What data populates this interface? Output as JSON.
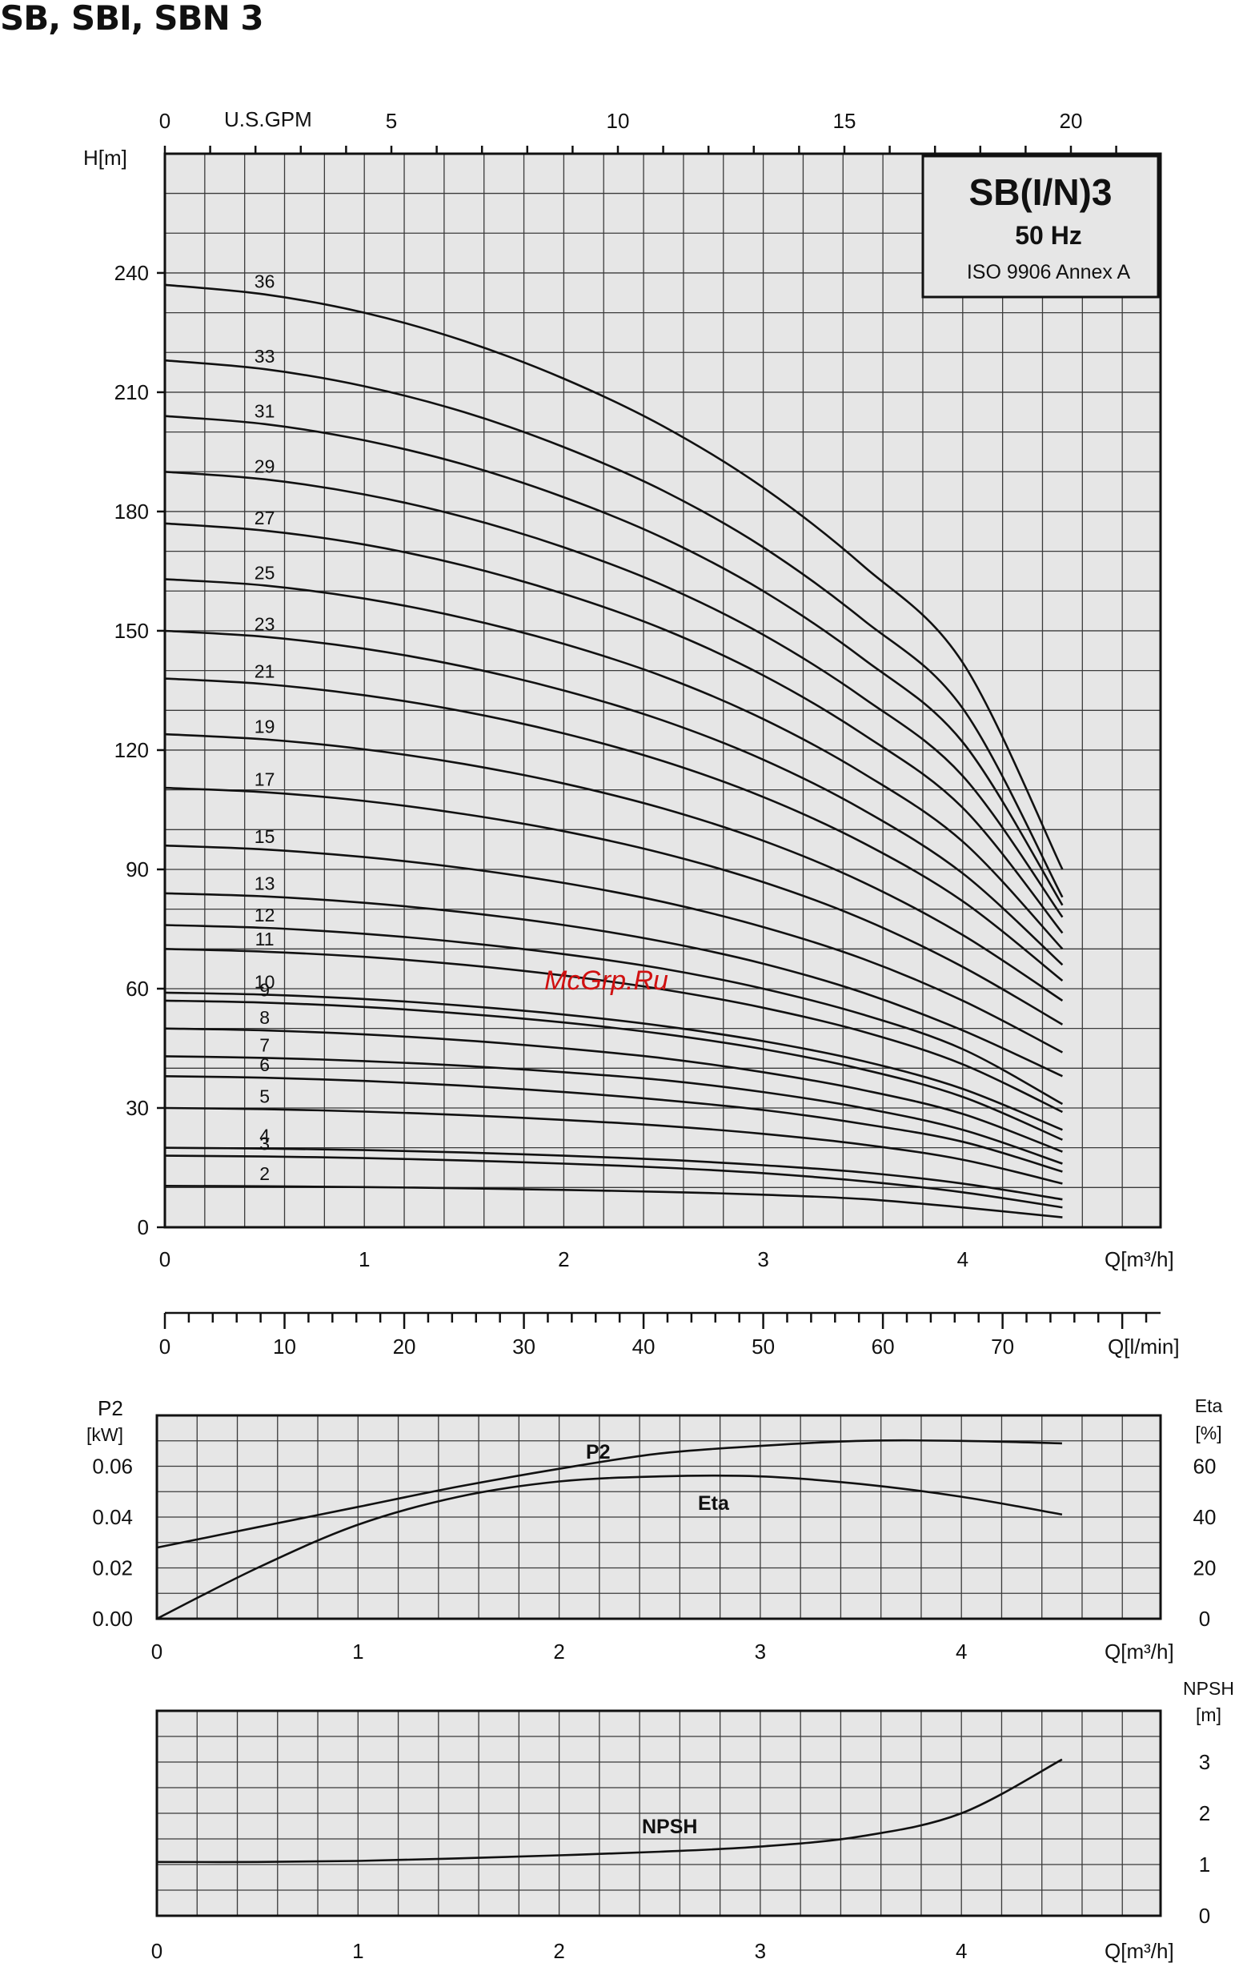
{
  "title": "SB, SBI, SBN 3",
  "watermark": "McGrp.Ru",
  "legend": {
    "model": "SB(I/N)3",
    "frequency": "50 Hz",
    "standard": "ISO 9906 Annex A"
  },
  "chart_data": [
    {
      "type": "line",
      "id": "head",
      "ylabel": "H[m]",
      "xlabel": "Q[m³/h]",
      "xlim": [
        0,
        5
      ],
      "ylim": [
        0,
        270
      ],
      "x_ticks": [
        0,
        1,
        2,
        3,
        4
      ],
      "y_ticks": [
        0,
        30,
        60,
        90,
        120,
        150,
        180,
        210,
        240
      ],
      "top_axis": {
        "label": "U.S.GPM",
        "ticks": [
          0,
          5,
          10,
          15,
          20
        ]
      },
      "bottom_axis2": {
        "label": "Q[l/min]",
        "ticks": [
          0,
          10,
          20,
          30,
          40,
          50,
          60,
          70
        ]
      },
      "grid": true,
      "x": [
        0,
        0.5,
        1,
        1.5,
        2,
        2.5,
        3,
        3.5,
        4,
        4.5
      ],
      "series": [
        {
          "name": "2",
          "values": [
            10.4,
            10.3,
            10.1,
            9.8,
            9.4,
            8.9,
            8.2,
            7.1,
            5.0,
            2.5
          ]
        },
        {
          "name": "3",
          "values": [
            18.0,
            17.8,
            17.4,
            16.8,
            16.0,
            15.0,
            13.6,
            11.6,
            8.8,
            5.0
          ]
        },
        {
          "name": "4",
          "values": [
            20.0,
            19.8,
            19.4,
            18.8,
            18.0,
            17.0,
            15.6,
            13.8,
            11.0,
            7.0
          ]
        },
        {
          "name": "5",
          "values": [
            30.0,
            29.7,
            29.1,
            28.2,
            27.0,
            25.5,
            23.5,
            20.8,
            17.0,
            11.0
          ]
        },
        {
          "name": "6",
          "values": [
            38.0,
            37.6,
            36.8,
            35.6,
            34.0,
            32.0,
            29.5,
            26.0,
            21.5,
            14.0
          ]
        },
        {
          "name": "7",
          "values": [
            43.0,
            42.6,
            41.8,
            40.6,
            39.0,
            37.0,
            34.0,
            30.0,
            24.5,
            16.0
          ]
        },
        {
          "name": "8",
          "values": [
            50.0,
            49.5,
            48.5,
            47.0,
            45.0,
            42.5,
            39.0,
            34.5,
            28.5,
            19.0
          ]
        },
        {
          "name": "9",
          "values": [
            57.0,
            56.5,
            55.4,
            53.7,
            51.5,
            48.6,
            44.8,
            39.7,
            32.8,
            22.0
          ]
        },
        {
          "name": "10",
          "values": [
            59.0,
            58.5,
            57.4,
            55.7,
            53.5,
            50.6,
            46.8,
            41.8,
            34.8,
            24.5
          ]
        },
        {
          "name": "11",
          "values": [
            70.0,
            69.3,
            68.0,
            66.0,
            63.3,
            59.8,
            55.2,
            49.2,
            41.0,
            29.0
          ]
        },
        {
          "name": "12",
          "values": [
            76.0,
            75.3,
            73.8,
            71.6,
            68.7,
            65.0,
            60.0,
            53.5,
            44.8,
            31.0
          ]
        },
        {
          "name": "13",
          "values": [
            84.0,
            83.2,
            81.6,
            79.2,
            76.0,
            71.8,
            66.3,
            59.0,
            49.5,
            38.0
          ]
        },
        {
          "name": "15",
          "values": [
            96.0,
            95.0,
            93.1,
            90.3,
            86.6,
            81.8,
            75.5,
            67.5,
            57.0,
            44.0
          ]
        },
        {
          "name": "17",
          "values": [
            110.5,
            109.4,
            107.2,
            103.9,
            99.6,
            94.0,
            86.8,
            77.5,
            65.5,
            51.0
          ]
        },
        {
          "name": "19",
          "values": [
            124.0,
            122.7,
            120.2,
            116.5,
            111.6,
            105.3,
            97.2,
            86.8,
            73.5,
            57.0
          ]
        },
        {
          "name": "21",
          "values": [
            138.0,
            136.6,
            133.8,
            129.7,
            124.2,
            117.2,
            108.2,
            96.7,
            82.0,
            62.0
          ]
        },
        {
          "name": "23",
          "values": [
            150.0,
            148.5,
            145.5,
            141.0,
            135.0,
            127.4,
            117.6,
            105.0,
            89.0,
            66.0
          ]
        },
        {
          "name": "25",
          "values": [
            163.0,
            161.4,
            158.1,
            153.2,
            146.7,
            138.5,
            127.8,
            114.2,
            97.0,
            70.0
          ]
        },
        {
          "name": "27",
          "values": [
            177.0,
            175.2,
            171.7,
            166.4,
            159.3,
            150.4,
            138.8,
            124.0,
            105.5,
            74.0
          ]
        },
        {
          "name": "29",
          "values": [
            190.0,
            188.1,
            184.3,
            178.6,
            171.0,
            161.4,
            149.0,
            133.2,
            113.5,
            78.0
          ]
        },
        {
          "name": "31",
          "values": [
            204.0,
            202.0,
            197.9,
            191.8,
            183.6,
            173.3,
            160.0,
            143.0,
            122.0,
            81.0
          ]
        },
        {
          "name": "33",
          "values": [
            218.0,
            215.8,
            211.5,
            205.0,
            196.2,
            185.2,
            171.0,
            152.8,
            130.5,
            83.0
          ]
        },
        {
          "name": "36",
          "values": [
            237.0,
            234.6,
            230.0,
            222.9,
            213.4,
            201.4,
            186.0,
            166.4,
            142.0,
            90.0
          ]
        }
      ]
    },
    {
      "type": "line",
      "id": "power",
      "ylabel": "P2 [kW]",
      "y2label": "Eta [%]",
      "xlabel": "Q[m³/h]",
      "xlim": [
        0,
        5
      ],
      "ylim": [
        0,
        0.08
      ],
      "y2lim": [
        0,
        80
      ],
      "x_ticks": [
        0,
        1,
        2,
        3,
        4
      ],
      "y_ticks": [
        0.0,
        0.02,
        0.04,
        0.06
      ],
      "y2_ticks": [
        0,
        20,
        40,
        60
      ],
      "grid": true,
      "x": [
        0,
        0.5,
        1,
        1.5,
        2,
        2.5,
        3,
        3.5,
        4,
        4.5
      ],
      "series": [
        {
          "name": "P2",
          "axis": "left",
          "values": [
            0.028,
            0.036,
            0.044,
            0.052,
            0.059,
            0.065,
            0.068,
            0.07,
            0.07,
            0.069
          ]
        },
        {
          "name": "Eta",
          "axis": "right",
          "values": [
            0,
            20,
            37,
            48,
            54,
            56,
            56,
            53,
            48,
            41
          ]
        }
      ]
    },
    {
      "type": "line",
      "id": "npsh",
      "ylabel": "NPSH [m]",
      "xlabel": "Q[m³/h]",
      "xlim": [
        0,
        5
      ],
      "ylim": [
        0,
        4
      ],
      "x_ticks": [
        0,
        1,
        2,
        3,
        4
      ],
      "y_ticks": [
        0,
        1,
        2,
        3
      ],
      "grid": true,
      "x": [
        0,
        0.5,
        1,
        1.5,
        2,
        2.5,
        3,
        3.5,
        4,
        4.5
      ],
      "series": [
        {
          "name": "NPSH",
          "values": [
            1.05,
            1.05,
            1.07,
            1.12,
            1.18,
            1.25,
            1.35,
            1.55,
            2.0,
            3.05
          ]
        }
      ]
    }
  ]
}
